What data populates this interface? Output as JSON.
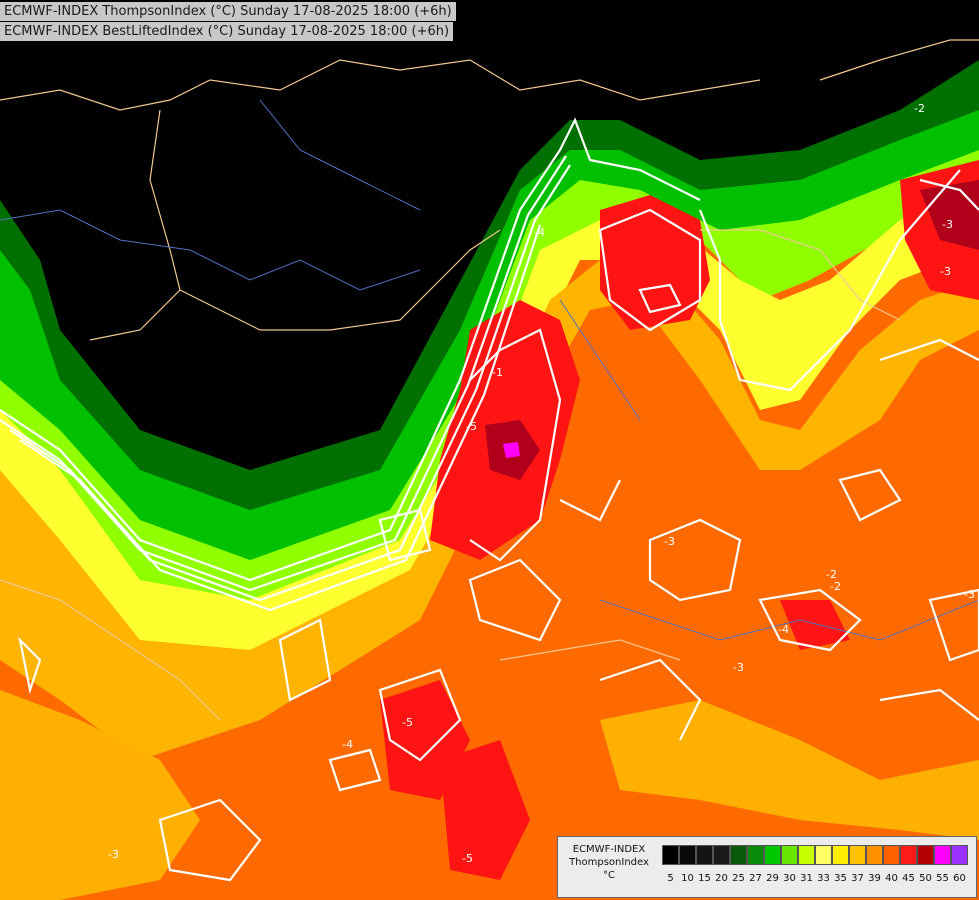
{
  "header": {
    "line1": "ECMWF-INDEX ThompsonIndex (°C) Sunday 17-08-2025 18:00 (+6h)",
    "line2": "ECMWF-INDEX BestLiftedIndex (°C) Sunday 17-08-2025 18:00 (+6h)"
  },
  "legend": {
    "model": "ECMWF-INDEX",
    "variable": "ThompsonIndex",
    "unit": "°C",
    "ticks": [
      "5",
      "10",
      "15",
      "20",
      "25",
      "27",
      "29",
      "30",
      "31",
      "33",
      "35",
      "37",
      "39",
      "40",
      "45",
      "50",
      "55",
      "60"
    ],
    "colors": [
      "#000000",
      "#0a0a0a",
      "#141414",
      "#1a1a1a",
      "#0a5a0a",
      "#0a8c0a",
      "#00c800",
      "#66e600",
      "#c8ff00",
      "#ffff66",
      "#ffee00",
      "#ffc000",
      "#ff9000",
      "#ff6000",
      "#ff1a1a",
      "#b40000",
      "#ff00ff",
      "#9b30ff",
      "#4040ff",
      "#0000ff"
    ]
  },
  "contour_labels": [
    "-5",
    "-4",
    "-3",
    "-2",
    "-1",
    "-3",
    "-2",
    "-3",
    "-4",
    "-5",
    "-3",
    "-2",
    "-3",
    "-4",
    "-3",
    "-5"
  ],
  "colors": {
    "background": "#000000",
    "dark_green": "#006000",
    "green": "#00c000",
    "lime": "#80ff00",
    "yellow": "#ffff40",
    "amber": "#ffb000",
    "orange": "#ff7a00",
    "deep_orange": "#ff5000",
    "red": "#ff1010",
    "dark_red": "#b00010",
    "magenta": "#ff00ff",
    "border": "#f0c890",
    "river": "#5070c0",
    "contour": "#ffffff"
  }
}
